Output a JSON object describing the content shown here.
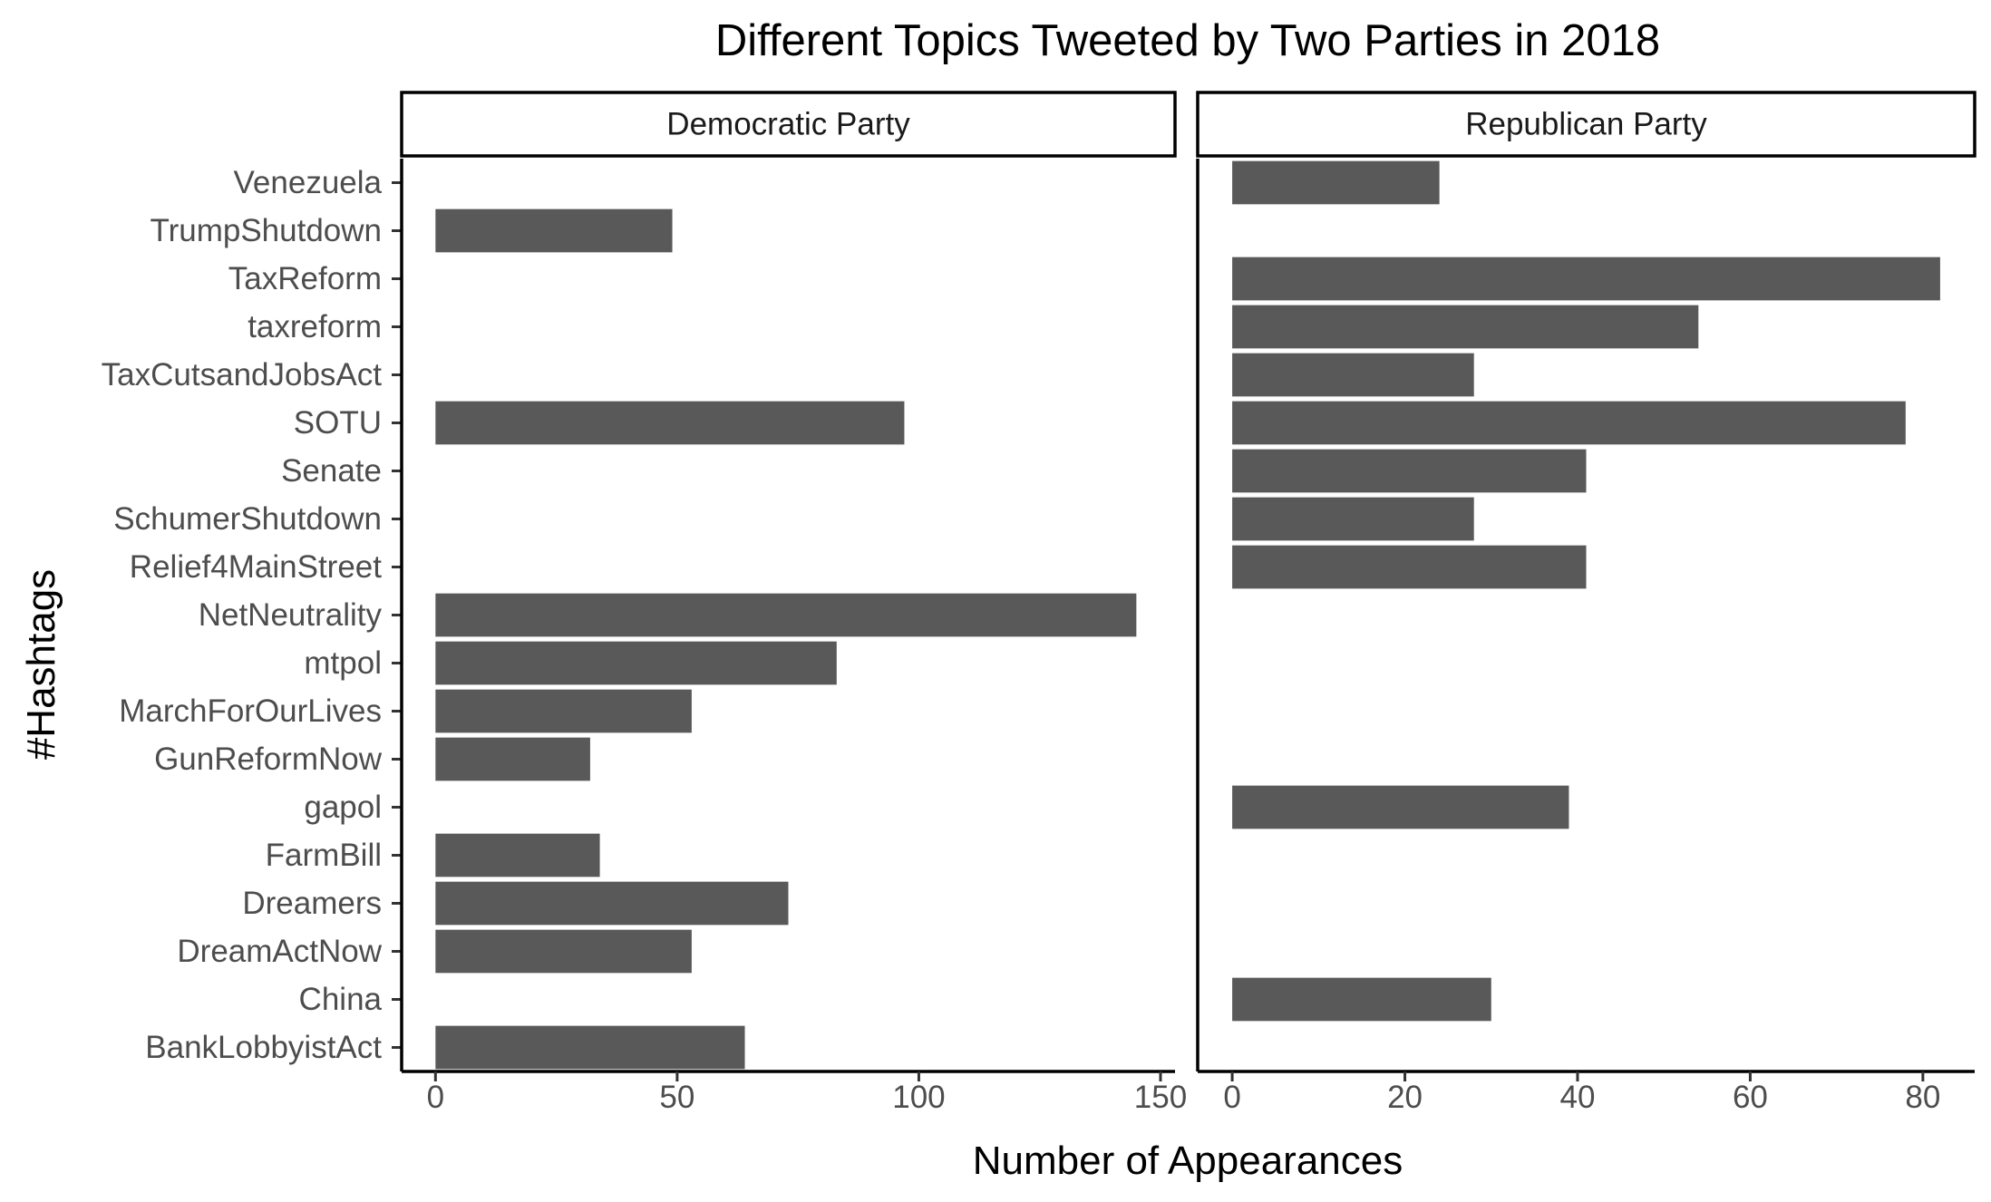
{
  "chart_data": {
    "type": "bar",
    "orientation": "horizontal",
    "title": "Different Topics Tweeted by Two Parties in 2018",
    "xlabel": "Number of Appearances",
    "ylabel": "#Hashtags",
    "categories": [
      "BankLobbyistAct",
      "China",
      "DreamActNow",
      "Dreamers",
      "FarmBill",
      "gapol",
      "GunReformNow",
      "MarchForOurLives",
      "mtpol",
      "NetNeutrality",
      "Relief4MainStreet",
      "SchumerShutdown",
      "Senate",
      "SOTU",
      "TaxCutsandJobsAct",
      "taxreform",
      "TaxReform",
      "TrumpShutdown",
      "Venezuela"
    ],
    "bar_color": "#595959",
    "panels": [
      {
        "name": "Democratic Party",
        "xlim": [
          -7,
          153
        ],
        "xticks": [
          0,
          50,
          100,
          150
        ],
        "values": [
          64,
          null,
          53,
          73,
          34,
          null,
          32,
          53,
          83,
          145,
          null,
          null,
          null,
          97,
          null,
          null,
          null,
          49,
          null
        ]
      },
      {
        "name": "Republican Party",
        "xlim": [
          -4,
          86
        ],
        "xticks": [
          0,
          20,
          40,
          60,
          80
        ],
        "values": [
          null,
          30,
          null,
          null,
          null,
          39,
          null,
          null,
          null,
          null,
          41,
          28,
          41,
          78,
          28,
          54,
          82,
          null,
          24
        ]
      }
    ]
  }
}
